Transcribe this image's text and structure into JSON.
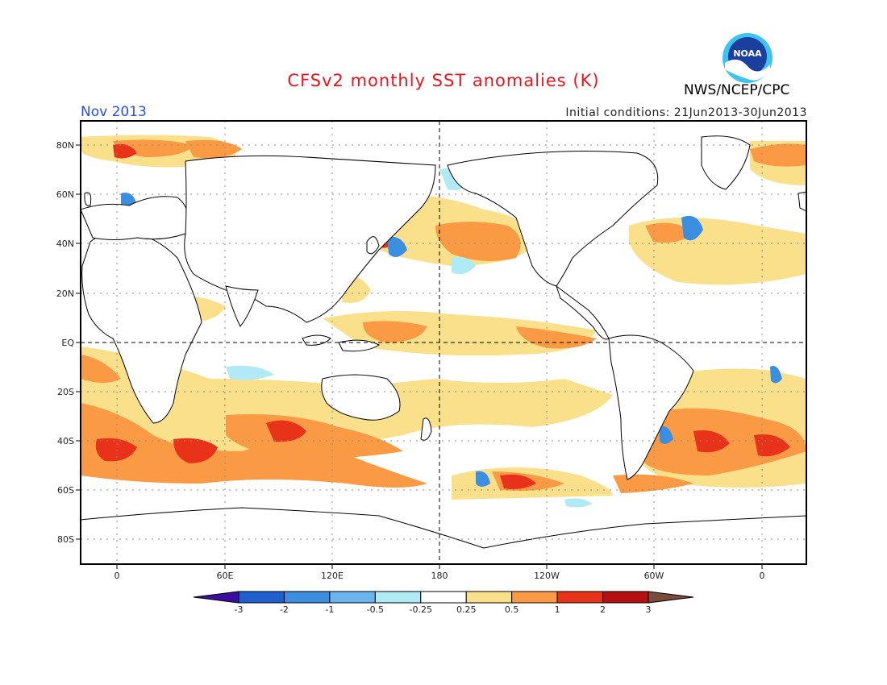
{
  "title": "CFSv2 monthly SST anomalies (K)",
  "month": "Nov 2013",
  "initial_conditions": "Initial conditions: 21Jun2013-30Jun2013",
  "organization": "NWS/NCEP/CPC",
  "logo_text": "NOAA",
  "lat_labels": [
    "80N",
    "60N",
    "40N",
    "20N",
    "EQ",
    "20S",
    "40S",
    "60S",
    "80S"
  ],
  "lon_labels": [
    "0",
    "60E",
    "120E",
    "180",
    "120W",
    "60W",
    "0"
  ],
  "colorbar": {
    "labels": [
      "-3",
      "-2",
      "-1",
      "-0.5",
      "-0.25",
      "0.25",
      "0.5",
      "1",
      "2",
      "3"
    ],
    "colors": [
      "#3d0fa0",
      "#1f5fcf",
      "#3c8ee0",
      "#6ab4f0",
      "#b0eaf5",
      "#ffffff",
      "#fbe08c",
      "#fb9a45",
      "#e8321a",
      "#b4100f",
      "#7a4a3a"
    ]
  },
  "colors": {
    "title": "#e8141e",
    "month": "#2a4fd6"
  }
}
